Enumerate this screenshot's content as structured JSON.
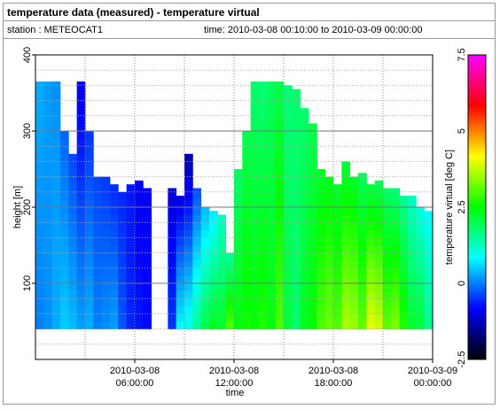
{
  "header": {
    "title": "temperature data (measured) - temperature virtual",
    "station": "station : METEOCAT1",
    "time_range": "time: 2010-03-08 00:10:00 to 2010-03-09 00:00:00"
  },
  "chart_data": {
    "type": "heatmap",
    "title": "temperature data (measured) - temperature virtual",
    "xlabel": "time",
    "ylabel": "height [m]",
    "colorbar_label": "temperature virtual [deg C]",
    "xlim": [
      0,
      24
    ],
    "ylim": [
      0,
      400
    ],
    "x_ticks": [
      {
        "hour": 6,
        "line1": "2010-03-08",
        "line2": "06:00:00"
      },
      {
        "hour": 12,
        "line1": "2010-03-08",
        "line2": "12:00:00"
      },
      {
        "hour": 18,
        "line1": "2010-03-08",
        "line2": "18:00:00"
      },
      {
        "hour": 24,
        "line1": "2010-03-09",
        "line2": "00:00:00"
      }
    ],
    "y_ticks": [
      {
        "value": 100,
        "label": "100"
      },
      {
        "value": 200,
        "label": "200"
      },
      {
        "value": 300,
        "label": "300"
      },
      {
        "value": 400,
        "label": "400"
      }
    ],
    "colorbar_range": [
      -2.5,
      7.5
    ],
    "colorbar_ticks": [
      {
        "value": -2.5,
        "label": "-2.5"
      },
      {
        "value": 0,
        "label": "0"
      },
      {
        "value": 2.5,
        "label": "2.5"
      },
      {
        "value": 5,
        "label": "5"
      },
      {
        "value": 7.5,
        "label": "7.5"
      }
    ],
    "colormap": [
      "#000000",
      "#0000ff",
      "#00ffff",
      "#00ff00",
      "#ffff00",
      "#ff0000",
      "#ff00ff"
    ],
    "grid": true,
    "data_height_range": [
      40,
      365
    ],
    "columns": [
      {
        "t": 0.0,
        "top": 365,
        "t_low": 0.0,
        "t_high": 0.3
      },
      {
        "t": 0.5,
        "top": 365,
        "t_low": 0.1,
        "t_high": 0.2
      },
      {
        "t": 1.0,
        "top": 365,
        "t_low": 0.3,
        "t_high": 0.1
      },
      {
        "t": 1.5,
        "top": 300,
        "t_low": 0.5,
        "t_high": -0.2
      },
      {
        "t": 2.0,
        "top": 270,
        "t_low": 0.4,
        "t_high": -0.4
      },
      {
        "t": 2.5,
        "top": 365,
        "t_low": 0.2,
        "t_high": -1.0
      },
      {
        "t": 3.0,
        "top": 300,
        "t_low": 0.3,
        "t_high": -0.5
      },
      {
        "t": 3.5,
        "top": 240,
        "t_low": 0.0,
        "t_high": -0.4
      },
      {
        "t": 4.0,
        "top": 240,
        "t_low": 0.1,
        "t_high": -0.5
      },
      {
        "t": 4.5,
        "top": 230,
        "t_low": 0.2,
        "t_high": -0.6
      },
      {
        "t": 5.0,
        "top": 220,
        "t_low": -0.3,
        "t_high": -0.6
      },
      {
        "t": 5.5,
        "top": 230,
        "t_low": -0.6,
        "t_high": -0.7
      },
      {
        "t": 6.0,
        "top": 235,
        "t_low": -0.7,
        "t_high": -0.9
      },
      {
        "t": 6.5,
        "top": 225,
        "t_low": -0.8,
        "t_high": -0.9
      },
      {
        "t": 8.0,
        "top": 225,
        "t_low": -0.5,
        "t_high": -1.1
      },
      {
        "t": 8.5,
        "top": 215,
        "t_low": 0.8,
        "t_high": -1.1
      },
      {
        "t": 9.0,
        "top": 270,
        "t_low": 1.0,
        "t_high": -1.5
      },
      {
        "t": 9.5,
        "top": 225,
        "t_low": 1.5,
        "t_high": -0.4
      },
      {
        "t": 10.0,
        "top": 200,
        "t_low": 2.0,
        "t_high": 0.3
      },
      {
        "t": 10.5,
        "top": 195,
        "t_low": 2.3,
        "t_high": 0.6
      },
      {
        "t": 11.0,
        "top": 190,
        "t_low": 2.2,
        "t_high": 1.2
      },
      {
        "t": 11.5,
        "top": 140,
        "t_low": 3.0,
        "t_high": 1.4
      },
      {
        "t": 12.0,
        "top": 250,
        "t_low": 2.4,
        "t_high": 1.8
      },
      {
        "t": 12.5,
        "top": 300,
        "t_low": 2.6,
        "t_high": 2.0
      },
      {
        "t": 13.0,
        "top": 365,
        "t_low": 2.5,
        "t_high": 1.8
      },
      {
        "t": 13.5,
        "top": 365,
        "t_low": 2.7,
        "t_high": 1.7
      },
      {
        "t": 14.0,
        "top": 365,
        "t_low": 2.4,
        "t_high": 1.9
      },
      {
        "t": 14.5,
        "top": 365,
        "t_low": 3.0,
        "t_high": 2.0
      },
      {
        "t": 15.0,
        "top": 360,
        "t_low": 2.1,
        "t_high": 1.7
      },
      {
        "t": 15.5,
        "top": 355,
        "t_low": 1.8,
        "t_high": 1.8
      },
      {
        "t": 16.0,
        "top": 330,
        "t_low": 2.3,
        "t_high": 1.8
      },
      {
        "t": 16.5,
        "top": 310,
        "t_low": 2.5,
        "t_high": 2.0
      },
      {
        "t": 17.0,
        "top": 250,
        "t_low": 3.0,
        "t_high": 2.2
      },
      {
        "t": 17.5,
        "top": 240,
        "t_low": 3.2,
        "t_high": 2.3
      },
      {
        "t": 18.0,
        "top": 230,
        "t_low": 3.0,
        "t_high": 2.2
      },
      {
        "t": 18.5,
        "top": 260,
        "t_low": 3.6,
        "t_high": 2.1
      },
      {
        "t": 19.0,
        "top": 240,
        "t_low": 3.5,
        "t_high": 2.2
      },
      {
        "t": 19.5,
        "top": 245,
        "t_low": 3.1,
        "t_high": 1.9
      },
      {
        "t": 20.0,
        "top": 230,
        "t_low": 4.0,
        "t_high": 2.0
      },
      {
        "t": 20.5,
        "top": 235,
        "t_low": 3.8,
        "t_high": 1.9
      },
      {
        "t": 21.0,
        "top": 225,
        "t_low": 3.1,
        "t_high": 1.8
      },
      {
        "t": 21.5,
        "top": 225,
        "t_low": 3.3,
        "t_high": 1.7
      },
      {
        "t": 22.0,
        "top": 215,
        "t_low": 2.7,
        "t_high": 1.5
      },
      {
        "t": 22.5,
        "top": 215,
        "t_low": 2.2,
        "t_high": 1.2
      },
      {
        "t": 23.0,
        "top": 200,
        "t_low": 2.1,
        "t_high": 1.0
      },
      {
        "t": 23.5,
        "top": 195,
        "t_low": 1.6,
        "t_high": 0.8
      }
    ]
  }
}
